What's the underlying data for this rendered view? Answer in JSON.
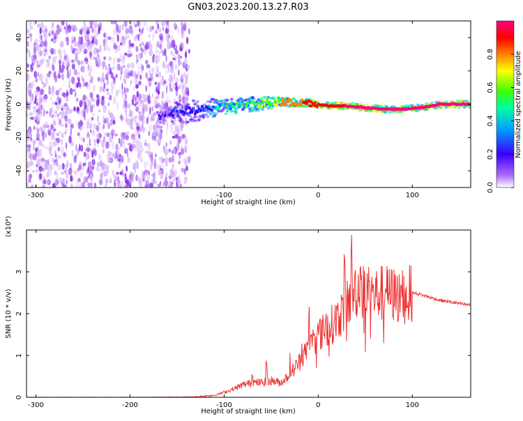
{
  "page_title": "GN03.2023.200.13.27.R03",
  "colors": {
    "signal_line": "#ee3333",
    "frame": "#000000",
    "noise": "#8a2be2"
  },
  "chart_data": [
    {
      "type": "heatmap",
      "xlabel": "Height of straight line (km)",
      "ylabel": "Frequency (Hz)",
      "xlim": [
        -310,
        162
      ],
      "ylim": [
        -50,
        50
      ],
      "x_ticks": [
        -300,
        -200,
        -100,
        0,
        100
      ],
      "y_ticks": [
        -40,
        -20,
        0,
        20,
        40
      ],
      "colorbar": {
        "label": "Normalized spectral amplitude",
        "range": [
          0,
          1
        ],
        "ticks": [
          0.0,
          0.2,
          0.4,
          0.6,
          0.8
        ],
        "colormap": [
          "#ffffff",
          "#b06cff",
          "#3a00ff",
          "#00a0ff",
          "#00ffa0",
          "#40ff00",
          "#ffff00",
          "#ff8000",
          "#ff0000",
          "#ff0080"
        ]
      },
      "noise_region": {
        "x_range": [
          -310,
          -137
        ],
        "amplitude": 0.05
      },
      "signal_ridge": {
        "x": [
          -170,
          -150,
          -130,
          -110,
          -90,
          -70,
          -50,
          -30,
          -10,
          10,
          30,
          50,
          70,
          90,
          110,
          130,
          150,
          162
        ],
        "frequency_hz": [
          -7,
          -5,
          -4,
          -2,
          -1,
          0,
          1,
          1,
          1,
          -1,
          -1,
          -2,
          -3,
          -3,
          -2,
          0,
          0,
          0
        ],
        "amplitude": [
          0.2,
          0.3,
          0.35,
          0.45,
          0.55,
          0.6,
          0.7,
          0.8,
          0.85,
          0.9,
          0.95,
          0.95,
          0.95,
          1.0,
          0.95,
          0.95,
          0.95,
          0.95
        ]
      }
    },
    {
      "type": "line",
      "xlabel": "Height of straight line (km)",
      "ylabel": "SNR (10 * v/v)",
      "y_multiplier": "(x10⁴)",
      "xlim": [
        -310,
        162
      ],
      "ylim": [
        0,
        4
      ],
      "x_ticks": [
        -300,
        -200,
        -100,
        0,
        100
      ],
      "y_ticks": [
        0,
        1,
        2,
        3
      ],
      "series": [
        {
          "x": [
            -310,
            -200,
            -130,
            -110,
            -100,
            -90,
            -80,
            -70,
            -60,
            -50,
            -40,
            -30,
            -20,
            -10,
            0,
            10,
            20,
            30,
            40,
            50,
            60,
            70,
            80,
            90,
            100,
            110,
            120,
            130,
            140,
            150,
            162
          ],
          "y": [
            0,
            0,
            0.01,
            0.05,
            0.12,
            0.2,
            0.3,
            0.35,
            0.35,
            0.4,
            0.35,
            0.55,
            0.85,
            1.2,
            1.5,
            1.65,
            1.85,
            2.2,
            2.6,
            2.5,
            2.45,
            2.5,
            2.45,
            2.4,
            2.5,
            2.45,
            2.38,
            2.32,
            2.28,
            2.24,
            2.2
          ],
          "spikes": [
            [
              -70,
              0.55
            ],
            [
              -55,
              0.85
            ],
            [
              -30,
              1.05
            ],
            [
              -18,
              1.35
            ],
            [
              -10,
              2.1
            ],
            [
              -5,
              1.6
            ],
            [
              8,
              2.0
            ],
            [
              20,
              2.2
            ],
            [
              28,
              3.3
            ],
            [
              35,
              3.8
            ],
            [
              45,
              3.1
            ],
            [
              55,
              2.8
            ],
            [
              72,
              2.6
            ],
            [
              88,
              2.8
            ]
          ]
        }
      ]
    }
  ]
}
